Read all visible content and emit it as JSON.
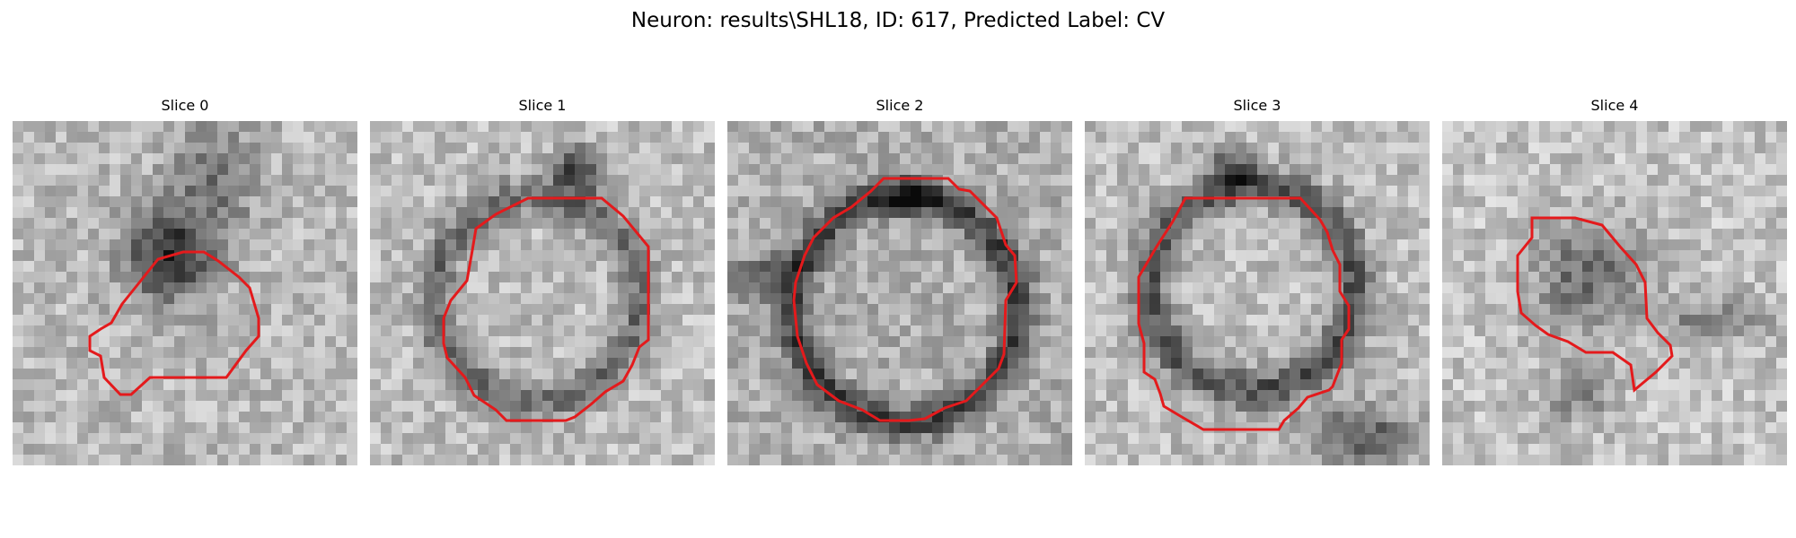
{
  "figure": {
    "suptitle": "Neuron: results\\SHL18, ID: 617, Predicted Label: CV"
  },
  "colors": {
    "contour": "#e41a1c"
  },
  "panels": [
    {
      "title": "Slice 0"
    },
    {
      "title": "Slice 1"
    },
    {
      "title": "Slice 2"
    },
    {
      "title": "Slice 3"
    },
    {
      "title": "Slice 4"
    }
  ]
}
